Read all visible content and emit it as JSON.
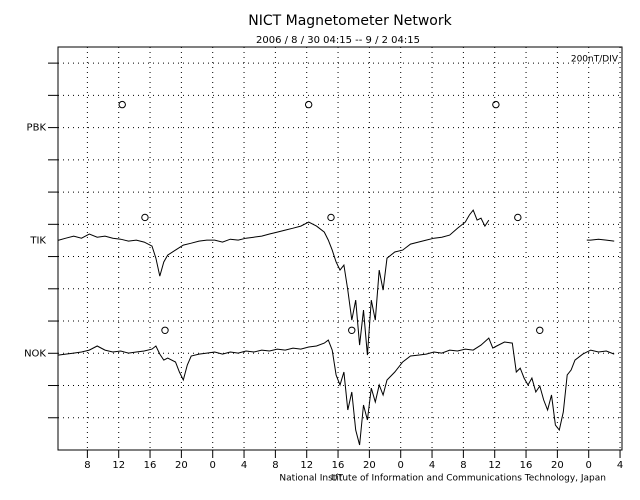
{
  "chart_data": {
    "type": "line",
    "title": "NICT Magnetometer Network",
    "subtitle": "2006 / 8 / 30   04:15 --  9 / 2   04:15",
    "scale_label": "200nT/DIV",
    "x_label": "UT",
    "footer": "National Institute of Information and Communications Technology, Japan",
    "xlim": [
      0,
      72
    ],
    "xticks": [
      {
        "value": 3.75,
        "label": "8"
      },
      {
        "value": 7.75,
        "label": "12"
      },
      {
        "value": 11.75,
        "label": "16"
      },
      {
        "value": 15.75,
        "label": "20"
      },
      {
        "value": 19.75,
        "label": "0"
      },
      {
        "value": 23.75,
        "label": "4"
      },
      {
        "value": 27.75,
        "label": "8"
      },
      {
        "value": 31.75,
        "label": "12"
      },
      {
        "value": 35.75,
        "label": "16"
      },
      {
        "value": 39.75,
        "label": "20"
      },
      {
        "value": 43.75,
        "label": "0"
      },
      {
        "value": 47.75,
        "label": "4"
      },
      {
        "value": 51.75,
        "label": "8"
      },
      {
        "value": 55.75,
        "label": "12"
      },
      {
        "value": 59.75,
        "label": "16"
      },
      {
        "value": 63.75,
        "label": "20"
      },
      {
        "value": 67.75,
        "label": "0"
      },
      {
        "value": 71.75,
        "label": "4"
      }
    ],
    "ylim": [
      0,
      2500
    ],
    "ygrid": [
      200,
      400,
      600,
      800,
      1000,
      1200,
      1400,
      1600,
      1800,
      2000,
      2200,
      2400
    ],
    "grid": true,
    "series": [
      {
        "name": "PBK",
        "color": "#000000",
        "baseline": 2000,
        "noon_marks": [
          8.2,
          32.0,
          55.9
        ],
        "x": [],
        "values": []
      },
      {
        "name": "TIK",
        "color": "#000000",
        "baseline": 1300,
        "noon_marks": [
          11.1,
          34.85,
          58.7
        ],
        "x": [
          0,
          1,
          2,
          3,
          4,
          5,
          6,
          7,
          8,
          9,
          10,
          11,
          12,
          12.5,
          13,
          13.5,
          14,
          15,
          16,
          17,
          18,
          19,
          20,
          21,
          22,
          23,
          24,
          25,
          26,
          27,
          28,
          29,
          30,
          31,
          32,
          33,
          34,
          34.5,
          35,
          35.5,
          36,
          36.5,
          37,
          37.5,
          38,
          38.5,
          39,
          39.5,
          40,
          40.5,
          41,
          41.5,
          42,
          43,
          44,
          45,
          46,
          47,
          48,
          49,
          50,
          51,
          52,
          52.5,
          53,
          53.5,
          54,
          54.5,
          55,
          56,
          67.5,
          68,
          69,
          70,
          71
        ],
        "values": [
          1300,
          1314,
          1327,
          1314,
          1340,
          1320,
          1327,
          1314,
          1308,
          1296,
          1302,
          1290,
          1265,
          1190,
          1079,
          1166,
          1209,
          1240,
          1271,
          1283,
          1296,
          1302,
          1302,
          1290,
          1308,
          1302,
          1314,
          1320,
          1327,
          1340,
          1352,
          1364,
          1376,
          1389,
          1414,
          1389,
          1352,
          1302,
          1240,
          1166,
          1116,
          1147,
          992,
          806,
          930,
          651,
          868,
          589,
          930,
          806,
          1116,
          992,
          1190,
          1228,
          1240,
          1277,
          1290,
          1302,
          1314,
          1320,
          1333,
          1376,
          1414,
          1457,
          1488,
          1426,
          1438,
          1389,
          1426,
          null,
          1302,
          1302,
          1308,
          1302,
          1296
        ]
      },
      {
        "name": "NOK",
        "color": "#000000",
        "baseline": 600,
        "noon_marks": [
          13.66,
          37.5,
          61.5
        ],
        "x": [
          0,
          1,
          2,
          3,
          4,
          5,
          6,
          7,
          8,
          9,
          10,
          11,
          12,
          12.5,
          13,
          13.5,
          14,
          15,
          15.5,
          16,
          16.5,
          17,
          18,
          19,
          20,
          21,
          22,
          23,
          24,
          25,
          26,
          27,
          28,
          29,
          30,
          31,
          32,
          33,
          34,
          34.5,
          35,
          35.5,
          36,
          36.5,
          37,
          37.5,
          38,
          38.5,
          39,
          39.5,
          40,
          40.5,
          41,
          41.5,
          42,
          43,
          44,
          45,
          46,
          47,
          48,
          49,
          50,
          51,
          52,
          53,
          54,
          55,
          55.5,
          56,
          57,
          58,
          58.5,
          59,
          59.5,
          60,
          60.5,
          61,
          61.5,
          62,
          62.5,
          63,
          63.5,
          64,
          64.5,
          65,
          65.5,
          66,
          67,
          68,
          69,
          70,
          71
        ],
        "values": [
          589,
          595,
          601,
          608,
          620,
          645,
          620,
          608,
          614,
          601,
          608,
          614,
          626,
          645,
          595,
          558,
          570,
          546,
          484,
          434,
          527,
          583,
          595,
          601,
          608,
          595,
          608,
          601,
          614,
          608,
          620,
          614,
          626,
          620,
          632,
          626,
          639,
          645,
          663,
          682,
          620,
          465,
          403,
          484,
          248,
          360,
          124,
          31,
          279,
          186,
          384,
          298,
          403,
          341,
          434,
          484,
          546,
          583,
          589,
          595,
          608,
          601,
          620,
          614,
          626,
          620,
          651,
          694,
          632,
          645,
          670,
          663,
          484,
          508,
          446,
          403,
          446,
          360,
          397,
          310,
          248,
          341,
          155,
          124,
          236,
          465,
          496,
          558,
          595,
          620,
          608,
          614,
          595
        ]
      }
    ]
  }
}
